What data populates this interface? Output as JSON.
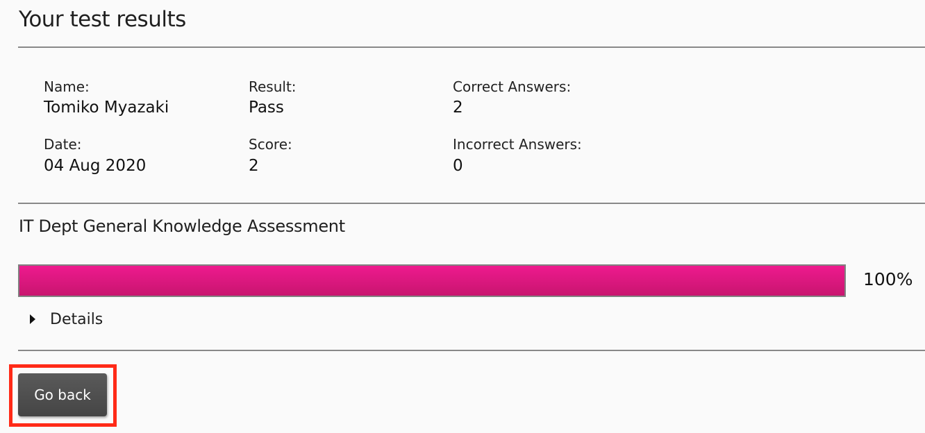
{
  "page": {
    "title": "Your test results"
  },
  "summary": {
    "name_label": "Name:",
    "name": "Tomiko Myazaki",
    "date_label": "Date:",
    "date": "04 Aug 2020",
    "result_label": "Result:",
    "result": "Pass",
    "score_label": "Score:",
    "score": "2",
    "correct_label": "Correct Answers:",
    "correct": "2",
    "incorrect_label": "Incorrect Answers:",
    "incorrect": "0"
  },
  "assessment": {
    "title": "IT Dept General Knowledge Assessment",
    "progress_percent": 100,
    "progress_label": "100%",
    "progress_color": "#e0187f",
    "details_label": "Details"
  },
  "actions": {
    "go_back_label": "Go back",
    "highlight_color": "#ff2a17"
  }
}
